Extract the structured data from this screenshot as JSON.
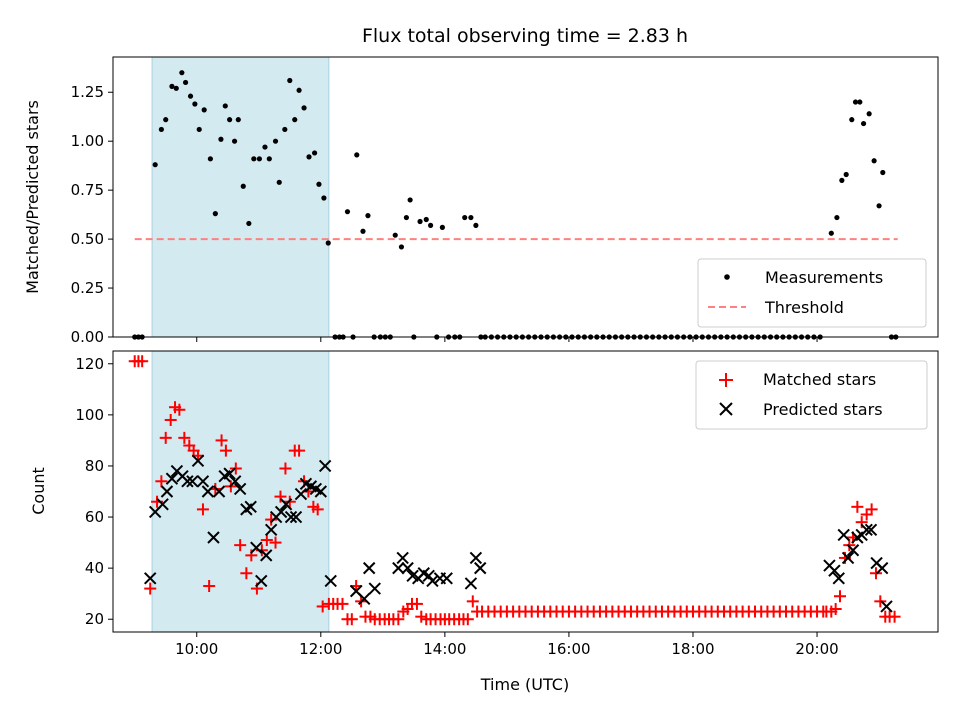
{
  "figure": {
    "title": "Flux total observing time = 2.83 h"
  },
  "chart_data": [
    {
      "type": "scatter",
      "xlabel": "",
      "ylabel": "Matched/Predicted stars",
      "xlim": [
        8.65,
        21.95
      ],
      "ylim": [
        0,
        1.43
      ],
      "x_ticks": [
        10,
        12,
        14,
        16,
        18,
        20
      ],
      "y_ticks": [
        0.0,
        0.25,
        0.5,
        0.75,
        1.0,
        1.25
      ],
      "y_tick_labels": [
        "0.00",
        "0.25",
        "0.50",
        "0.75",
        "1.00",
        "1.25"
      ],
      "shaded_span": {
        "x": [
          9.28,
          12.13
        ],
        "color": "#d4eaf1"
      },
      "legend": {
        "placement": "lower right",
        "entries": [
          "Measurements",
          "Threshold"
        ]
      },
      "series": [
        {
          "name": "Measurements",
          "marker": "dot",
          "color": "#000000",
          "x": [
            9.0,
            9.06,
            9.12,
            9.33,
            9.43,
            9.5,
            9.6,
            9.67,
            9.76,
            9.82,
            9.9,
            9.97,
            10.04,
            10.12,
            10.22,
            10.3,
            10.39,
            10.46,
            10.53,
            10.61,
            10.67,
            10.75,
            10.84,
            10.92,
            11.01,
            11.1,
            11.17,
            11.27,
            11.33,
            11.42,
            11.5,
            11.58,
            11.65,
            11.73,
            11.81,
            11.9,
            11.97,
            12.05,
            12.12,
            12.23,
            12.3,
            12.36,
            12.43,
            12.52,
            12.58,
            12.68,
            12.76,
            12.86,
            12.96,
            13.04,
            13.12,
            13.2,
            13.3,
            13.38,
            13.44,
            13.5,
            13.6,
            13.7,
            13.77,
            13.87,
            13.96,
            14.06,
            14.16,
            14.24,
            14.32,
            14.42,
            14.5,
            14.58
          ],
          "y": [
            0,
            0,
            0,
            0.88,
            1.06,
            1.11,
            1.28,
            1.27,
            1.35,
            1.3,
            1.23,
            1.19,
            1.06,
            1.16,
            0.91,
            0.63,
            1.01,
            1.18,
            1.11,
            1.0,
            1.11,
            0.77,
            0.58,
            0.91,
            0.91,
            0.97,
            0.91,
            1.0,
            0.79,
            1.06,
            1.31,
            1.11,
            1.26,
            1.17,
            0.92,
            0.94,
            0.78,
            0.71,
            0.48,
            0,
            0,
            0,
            0.64,
            0,
            0.93,
            0.54,
            0.62,
            0,
            0,
            0,
            0,
            0.52,
            0.46,
            0.61,
            0.7,
            0,
            0.59,
            0.6,
            0.57,
            0,
            0.56,
            0,
            0,
            0,
            0.61,
            0.61,
            0.57,
            0
          ],
          "extra_points": [
            [
              20.23,
              0.53
            ],
            [
              20.32,
              0.61
            ],
            [
              20.4,
              0.8
            ],
            [
              20.47,
              0.83
            ],
            [
              20.56,
              1.11
            ],
            [
              20.62,
              1.2
            ],
            [
              20.69,
              1.2
            ],
            [
              20.75,
              1.09
            ],
            [
              20.84,
              1.14
            ],
            [
              20.92,
              0.9
            ],
            [
              21.0,
              0.67
            ],
            [
              21.06,
              0.84
            ],
            [
              21.2,
              0
            ],
            [
              21.27,
              0
            ]
          ],
          "zero_range": {
            "from": 14.65,
            "to": 20.1,
            "step": 0.1
          }
        },
        {
          "name": "Threshold",
          "type": "line",
          "style": "dashed",
          "color": "#ff8080",
          "x": [
            9.0,
            21.3
          ],
          "y": [
            0.5,
            0.5
          ]
        }
      ]
    },
    {
      "type": "scatter",
      "xlabel": "Time (UTC)",
      "ylabel": "Count",
      "xlim": [
        8.65,
        21.95
      ],
      "ylim": [
        15,
        125
      ],
      "x_ticks": [
        10,
        12,
        14,
        16,
        18,
        20
      ],
      "x_tick_labels": [
        "10:00",
        "12:00",
        "14:00",
        "16:00",
        "18:00",
        "20:00"
      ],
      "y_ticks": [
        20,
        40,
        60,
        80,
        100,
        120
      ],
      "y_tick_labels": [
        "20",
        "40",
        "60",
        "80",
        "100",
        "120"
      ],
      "shaded_span": {
        "x": [
          9.28,
          12.13
        ],
        "color": "#d4eaf1"
      },
      "legend": {
        "placement": "upper right",
        "entries": [
          "Matched stars",
          "Predicted stars"
        ]
      },
      "series": [
        {
          "name": "Matched stars",
          "marker": "plus",
          "color": "#ff0000",
          "x": [
            9.0,
            9.06,
            9.12,
            9.25,
            9.36,
            9.43,
            9.5,
            9.58,
            9.65,
            9.72,
            9.8,
            9.88,
            9.95,
            10.02,
            10.1,
            10.2,
            10.3,
            10.4,
            10.47,
            10.55,
            10.63,
            10.7,
            10.8,
            10.88,
            10.97,
            11.05,
            11.13,
            11.2,
            11.27,
            11.35,
            11.43,
            11.5,
            11.58,
            11.65,
            11.73,
            11.8,
            11.88,
            11.95,
            12.03,
            12.13,
            12.2,
            12.27,
            12.35,
            12.43,
            12.5,
            12.57,
            12.65,
            12.72,
            12.8,
            12.87,
            12.95,
            13.03,
            13.1,
            13.17,
            13.25,
            13.33,
            13.4,
            13.47,
            13.55,
            13.62,
            13.7,
            13.77,
            13.85,
            13.93,
            14.0,
            14.07,
            14.15,
            14.23,
            14.3,
            14.37,
            14.45,
            14.52
          ],
          "y": [
            121,
            121,
            121,
            32,
            66,
            74,
            91,
            98,
            103,
            102,
            91,
            88,
            86,
            84,
            63,
            33,
            71,
            90,
            86,
            72,
            79,
            49,
            38,
            45,
            32,
            47,
            51,
            59,
            50,
            68,
            79,
            66,
            86,
            86,
            74,
            70,
            64,
            63,
            25,
            26,
            26,
            26,
            26,
            20,
            20,
            33,
            27,
            21,
            21,
            20,
            20,
            20,
            20,
            20,
            20,
            23,
            24,
            26,
            26,
            21,
            20,
            20,
            20,
            20,
            20,
            20,
            20,
            20,
            20,
            20,
            27,
            23
          ],
          "extra_points": [
            [
              20.15,
              23
            ],
            [
              20.23,
              23
            ],
            [
              20.3,
              24
            ],
            [
              20.37,
              29
            ],
            [
              20.45,
              44
            ],
            [
              20.52,
              49
            ],
            [
              20.58,
              52
            ],
            [
              20.65,
              64
            ],
            [
              20.72,
              58
            ],
            [
              20.8,
              61
            ],
            [
              20.88,
              63
            ],
            [
              20.95,
              38
            ],
            [
              21.02,
              27
            ],
            [
              21.1,
              21
            ],
            [
              21.17,
              21
            ],
            [
              21.25,
              21
            ]
          ],
          "flat_range": {
            "from": 14.6,
            "to": 20.1,
            "step": 0.1,
            "value": 23
          }
        },
        {
          "name": "Predicted stars",
          "marker": "x",
          "color": "#000000",
          "x": [
            9.25,
            9.33,
            9.45,
            9.52,
            9.6,
            9.68,
            9.77,
            9.85,
            9.93,
            10.02,
            10.1,
            10.18,
            10.27,
            10.36,
            10.45,
            10.53,
            10.62,
            10.7,
            10.8,
            10.87,
            10.96,
            11.04,
            11.12,
            11.2,
            11.28,
            11.36,
            11.44,
            11.52,
            11.6,
            11.68,
            11.76,
            11.84,
            11.92,
            12.0,
            12.07,
            12.16,
            12.57,
            12.7,
            12.78,
            12.87,
            13.25,
            13.32,
            13.4,
            13.48,
            13.57,
            13.66,
            13.74,
            13.8,
            13.92,
            14.03,
            14.42,
            14.5,
            14.57
          ],
          "y": [
            36,
            62,
            65,
            70,
            75,
            78,
            76,
            74,
            74,
            82,
            74,
            70,
            52,
            70,
            76,
            77,
            74,
            71,
            63,
            64,
            48,
            35,
            45,
            55,
            60,
            62,
            65,
            60,
            60,
            69,
            73,
            72,
            71,
            70,
            80,
            35,
            31,
            28,
            40,
            32,
            40,
            44,
            40,
            37,
            36,
            38,
            37,
            35,
            36,
            36,
            34,
            44,
            40
          ],
          "extra_points": [
            [
              20.2,
              41
            ],
            [
              20.28,
              39
            ],
            [
              20.35,
              36
            ],
            [
              20.43,
              53
            ],
            [
              20.5,
              44
            ],
            [
              20.58,
              47
            ],
            [
              20.65,
              52
            ],
            [
              20.72,
              53
            ],
            [
              20.8,
              55
            ],
            [
              20.87,
              55
            ],
            [
              20.96,
              42
            ],
            [
              21.05,
              40
            ],
            [
              21.12,
              25
            ]
          ]
        }
      ]
    }
  ]
}
